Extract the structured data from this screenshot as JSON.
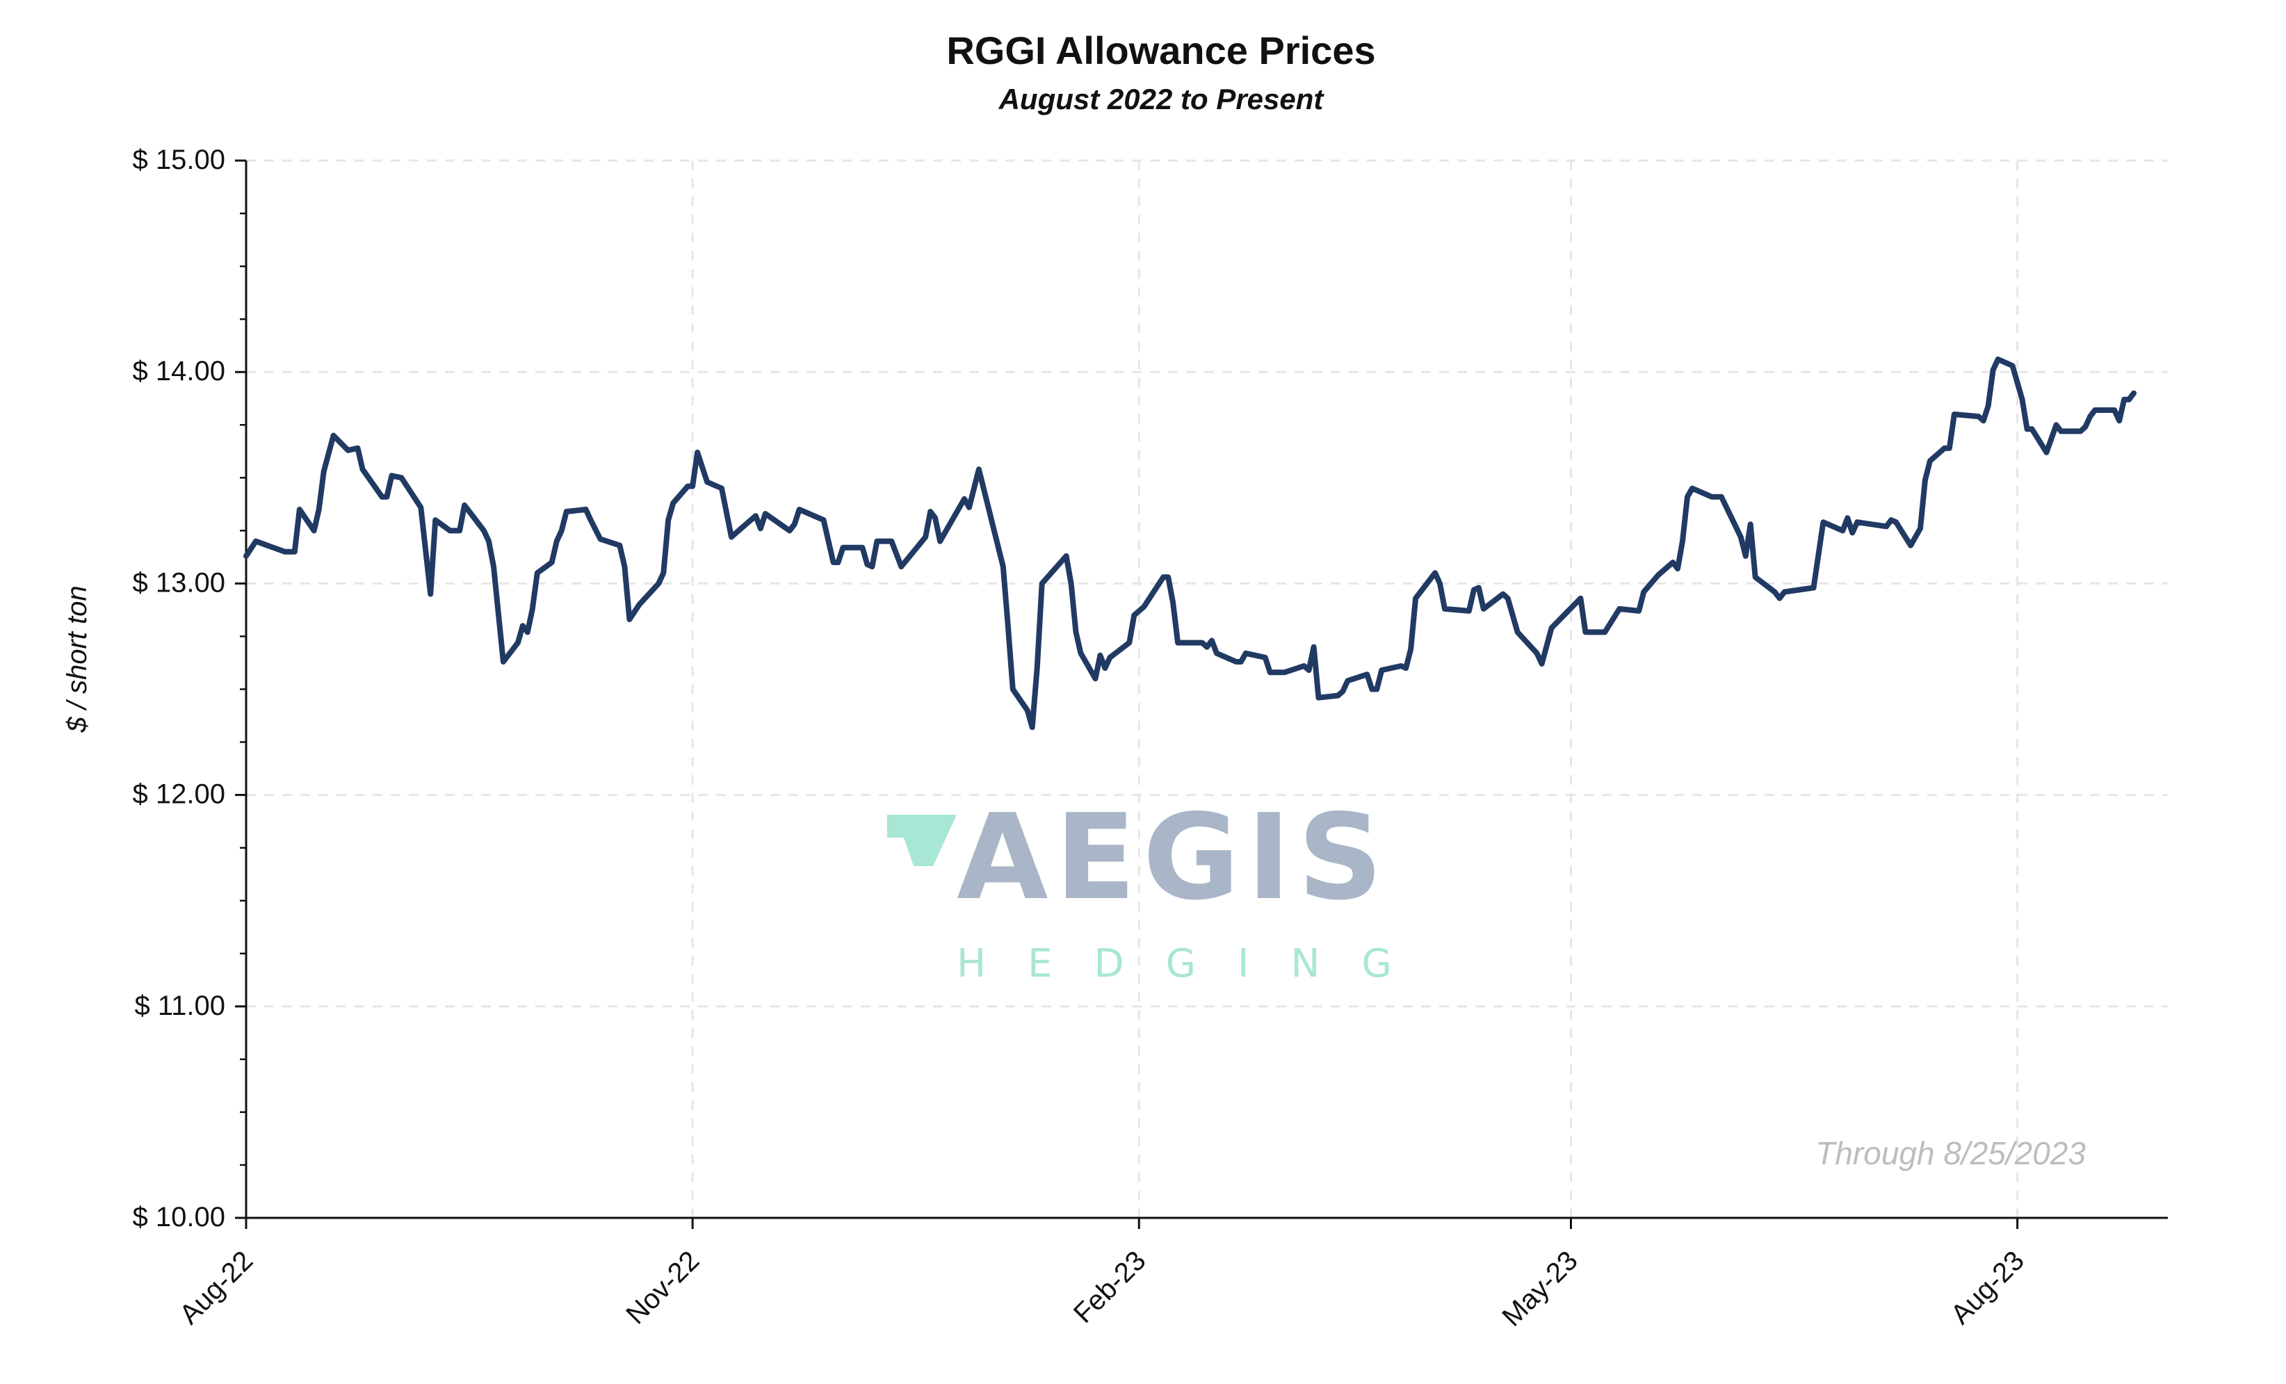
{
  "chart_data": {
    "type": "line",
    "title": "RGGI Allowance Prices",
    "subtitle": "August 2022 to Present",
    "xlabel": "",
    "ylabel": "$ / short ton",
    "annotation": "Through 8/25/2023",
    "xlim": [
      "2022-08-01",
      "2023-09-01"
    ],
    "ylim": [
      10,
      15
    ],
    "x_ticks": [
      {
        "date": "2022-08-01",
        "label": "Aug-22"
      },
      {
        "date": "2022-11-01",
        "label": "Nov-22"
      },
      {
        "date": "2023-02-01",
        "label": "Feb-23"
      },
      {
        "date": "2023-05-01",
        "label": "May-23"
      },
      {
        "date": "2023-08-01",
        "label": "Aug-23"
      }
    ],
    "y_ticks": [
      {
        "value": 10,
        "label": "$ 10.00"
      },
      {
        "value": 11,
        "label": "$ 11.00"
      },
      {
        "value": 12,
        "label": "$ 12.00"
      },
      {
        "value": 13,
        "label": "$ 13.00"
      },
      {
        "value": 14,
        "label": "$ 14.00"
      },
      {
        "value": 15,
        "label": "$ 15.00"
      }
    ],
    "y_minor_step": 0.25,
    "grid": true,
    "line_color": "#213a63",
    "watermark": {
      "main": "AEGIS",
      "sub": "HEDGING",
      "main_color": "#a9b6c7",
      "accent_color": "#a8e6d5"
    },
    "points": [
      [
        "2022-08-01",
        13.13
      ],
      [
        "2022-08-03",
        13.2
      ],
      [
        "2022-08-09",
        13.15
      ],
      [
        "2022-08-11",
        13.15
      ],
      [
        "2022-08-12",
        13.35
      ],
      [
        "2022-08-15",
        13.25
      ],
      [
        "2022-08-16",
        13.35
      ],
      [
        "2022-08-17",
        13.53
      ],
      [
        "2022-08-19",
        13.7
      ],
      [
        "2022-08-22",
        13.63
      ],
      [
        "2022-08-24",
        13.64
      ],
      [
        "2022-08-25",
        13.54
      ],
      [
        "2022-08-29",
        13.41
      ],
      [
        "2022-08-30",
        13.41
      ],
      [
        "2022-08-31",
        13.51
      ],
      [
        "2022-09-02",
        13.5
      ],
      [
        "2022-09-06",
        13.36
      ],
      [
        "2022-09-08",
        12.95
      ],
      [
        "2022-09-09",
        13.3
      ],
      [
        "2022-09-12",
        13.25
      ],
      [
        "2022-09-14",
        13.25
      ],
      [
        "2022-09-15",
        13.37
      ],
      [
        "2022-09-19",
        13.25
      ],
      [
        "2022-09-20",
        13.2
      ],
      [
        "2022-09-21",
        13.08
      ],
      [
        "2022-09-23",
        12.63
      ],
      [
        "2022-09-26",
        12.72
      ],
      [
        "2022-09-27",
        12.8
      ],
      [
        "2022-09-28",
        12.77
      ],
      [
        "2022-09-29",
        12.88
      ],
      [
        "2022-09-30",
        13.05
      ],
      [
        "2022-10-03",
        13.1
      ],
      [
        "2022-10-04",
        13.2
      ],
      [
        "2022-10-05",
        13.25
      ],
      [
        "2022-10-06",
        13.34
      ],
      [
        "2022-10-10",
        13.35
      ],
      [
        "2022-10-11",
        13.3
      ],
      [
        "2022-10-13",
        13.21
      ],
      [
        "2022-10-17",
        13.18
      ],
      [
        "2022-10-18",
        13.08
      ],
      [
        "2022-10-19",
        12.83
      ],
      [
        "2022-10-21",
        12.9
      ],
      [
        "2022-10-25",
        13.0
      ],
      [
        "2022-10-26",
        13.05
      ],
      [
        "2022-10-27",
        13.3
      ],
      [
        "2022-10-28",
        13.38
      ],
      [
        "2022-10-31",
        13.46
      ],
      [
        "2022-11-01",
        13.46
      ],
      [
        "2022-11-02",
        13.62
      ],
      [
        "2022-11-04",
        13.48
      ],
      [
        "2022-11-07",
        13.45
      ],
      [
        "2022-11-09",
        13.22
      ],
      [
        "2022-11-11",
        13.26
      ],
      [
        "2022-11-14",
        13.32
      ],
      [
        "2022-11-15",
        13.26
      ],
      [
        "2022-11-16",
        13.33
      ],
      [
        "2022-11-21",
        13.25
      ],
      [
        "2022-11-22",
        13.28
      ],
      [
        "2022-11-23",
        13.35
      ],
      [
        "2022-11-28",
        13.3
      ],
      [
        "2022-11-29",
        13.2
      ],
      [
        "2022-11-30",
        13.1
      ],
      [
        "2022-12-01",
        13.1
      ],
      [
        "2022-12-02",
        13.17
      ],
      [
        "2022-12-06",
        13.17
      ],
      [
        "2022-12-07",
        13.09
      ],
      [
        "2022-12-08",
        13.08
      ],
      [
        "2022-12-09",
        13.2
      ],
      [
        "2022-12-12",
        13.2
      ],
      [
        "2022-12-14",
        13.08
      ],
      [
        "2022-12-19",
        13.22
      ],
      [
        "2022-12-20",
        13.34
      ],
      [
        "2022-12-21",
        13.31
      ],
      [
        "2022-12-22",
        13.2
      ],
      [
        "2022-12-27",
        13.4
      ],
      [
        "2022-12-28",
        13.36
      ],
      [
        "2022-12-30",
        13.54
      ],
      [
        "2023-01-04",
        13.08
      ],
      [
        "2023-01-05",
        12.8
      ],
      [
        "2023-01-06",
        12.5
      ],
      [
        "2023-01-09",
        12.4
      ],
      [
        "2023-01-10",
        12.32
      ],
      [
        "2023-01-11",
        12.6
      ],
      [
        "2023-01-12",
        13.0
      ],
      [
        "2023-01-17",
        13.13
      ],
      [
        "2023-01-18",
        13.0
      ],
      [
        "2023-01-19",
        12.77
      ],
      [
        "2023-01-20",
        12.67
      ],
      [
        "2023-01-23",
        12.55
      ],
      [
        "2023-01-24",
        12.66
      ],
      [
        "2023-01-25",
        12.6
      ],
      [
        "2023-01-26",
        12.65
      ],
      [
        "2023-01-30",
        12.72
      ],
      [
        "2023-01-31",
        12.85
      ],
      [
        "2023-02-02",
        12.89
      ],
      [
        "2023-02-06",
        13.03
      ],
      [
        "2023-02-07",
        13.03
      ],
      [
        "2023-02-08",
        12.91
      ],
      [
        "2023-02-09",
        12.72
      ],
      [
        "2023-02-14",
        12.72
      ],
      [
        "2023-02-15",
        12.7
      ],
      [
        "2023-02-16",
        12.73
      ],
      [
        "2023-02-17",
        12.67
      ],
      [
        "2023-02-21",
        12.63
      ],
      [
        "2023-02-22",
        12.63
      ],
      [
        "2023-02-23",
        12.67
      ],
      [
        "2023-02-27",
        12.65
      ],
      [
        "2023-02-28",
        12.58
      ],
      [
        "2023-03-03",
        12.58
      ],
      [
        "2023-03-07",
        12.61
      ],
      [
        "2023-03-08",
        12.59
      ],
      [
        "2023-03-09",
        12.7
      ],
      [
        "2023-03-10",
        12.46
      ],
      [
        "2023-03-14",
        12.47
      ],
      [
        "2023-03-15",
        12.49
      ],
      [
        "2023-03-16",
        12.54
      ],
      [
        "2023-03-20",
        12.57
      ],
      [
        "2023-03-21",
        12.5
      ],
      [
        "2023-03-22",
        12.5
      ],
      [
        "2023-03-23",
        12.59
      ],
      [
        "2023-03-27",
        12.61
      ],
      [
        "2023-03-28",
        12.6
      ],
      [
        "2023-03-29",
        12.69
      ],
      [
        "2023-03-30",
        12.93
      ],
      [
        "2023-04-03",
        13.05
      ],
      [
        "2023-04-04",
        13.0
      ],
      [
        "2023-04-05",
        12.88
      ],
      [
        "2023-04-10",
        12.87
      ],
      [
        "2023-04-11",
        12.97
      ],
      [
        "2023-04-12",
        12.98
      ],
      [
        "2023-04-13",
        12.88
      ],
      [
        "2023-04-17",
        12.95
      ],
      [
        "2023-04-18",
        12.93
      ],
      [
        "2023-04-20",
        12.77
      ],
      [
        "2023-04-24",
        12.67
      ],
      [
        "2023-04-25",
        12.62
      ],
      [
        "2023-04-27",
        12.79
      ],
      [
        "2023-05-03",
        12.93
      ],
      [
        "2023-05-04",
        12.77
      ],
      [
        "2023-05-08",
        12.77
      ],
      [
        "2023-05-11",
        12.88
      ],
      [
        "2023-05-15",
        12.87
      ],
      [
        "2023-05-16",
        12.96
      ],
      [
        "2023-05-19",
        13.04
      ],
      [
        "2023-05-22",
        13.1
      ],
      [
        "2023-05-23",
        13.07
      ],
      [
        "2023-05-24",
        13.2
      ],
      [
        "2023-05-25",
        13.41
      ],
      [
        "2023-05-26",
        13.45
      ],
      [
        "2023-05-30",
        13.41
      ],
      [
        "2023-06-01",
        13.41
      ],
      [
        "2023-06-05",
        13.22
      ],
      [
        "2023-06-06",
        13.13
      ],
      [
        "2023-06-07",
        13.28
      ],
      [
        "2023-06-08",
        13.03
      ],
      [
        "2023-06-12",
        12.96
      ],
      [
        "2023-06-13",
        12.93
      ],
      [
        "2023-06-14",
        12.96
      ],
      [
        "2023-06-20",
        12.98
      ],
      [
        "2023-06-22",
        13.29
      ],
      [
        "2023-06-26",
        13.25
      ],
      [
        "2023-06-27",
        13.31
      ],
      [
        "2023-06-28",
        13.24
      ],
      [
        "2023-06-29",
        13.29
      ],
      [
        "2023-07-05",
        13.27
      ],
      [
        "2023-07-06",
        13.3
      ],
      [
        "2023-07-07",
        13.29
      ],
      [
        "2023-07-10",
        13.18
      ],
      [
        "2023-07-12",
        13.26
      ],
      [
        "2023-07-13",
        13.49
      ],
      [
        "2023-07-14",
        13.58
      ],
      [
        "2023-07-17",
        13.64
      ],
      [
        "2023-07-18",
        13.64
      ],
      [
        "2023-07-19",
        13.8
      ],
      [
        "2023-07-24",
        13.79
      ],
      [
        "2023-07-25",
        13.77
      ],
      [
        "2023-07-26",
        13.84
      ],
      [
        "2023-07-27",
        14.01
      ],
      [
        "2023-07-28",
        14.06
      ],
      [
        "2023-07-31",
        14.03
      ],
      [
        "2023-08-02",
        13.87
      ],
      [
        "2023-08-03",
        13.73
      ],
      [
        "2023-08-04",
        13.73
      ],
      [
        "2023-08-07",
        13.62
      ],
      [
        "2023-08-09",
        13.75
      ],
      [
        "2023-08-10",
        13.72
      ],
      [
        "2023-08-14",
        13.72
      ],
      [
        "2023-08-15",
        13.74
      ],
      [
        "2023-08-16",
        13.79
      ],
      [
        "2023-08-17",
        13.82
      ],
      [
        "2023-08-21",
        13.82
      ],
      [
        "2023-08-22",
        13.77
      ],
      [
        "2023-08-23",
        13.87
      ],
      [
        "2023-08-24",
        13.87
      ],
      [
        "2023-08-25",
        13.9
      ]
    ]
  }
}
